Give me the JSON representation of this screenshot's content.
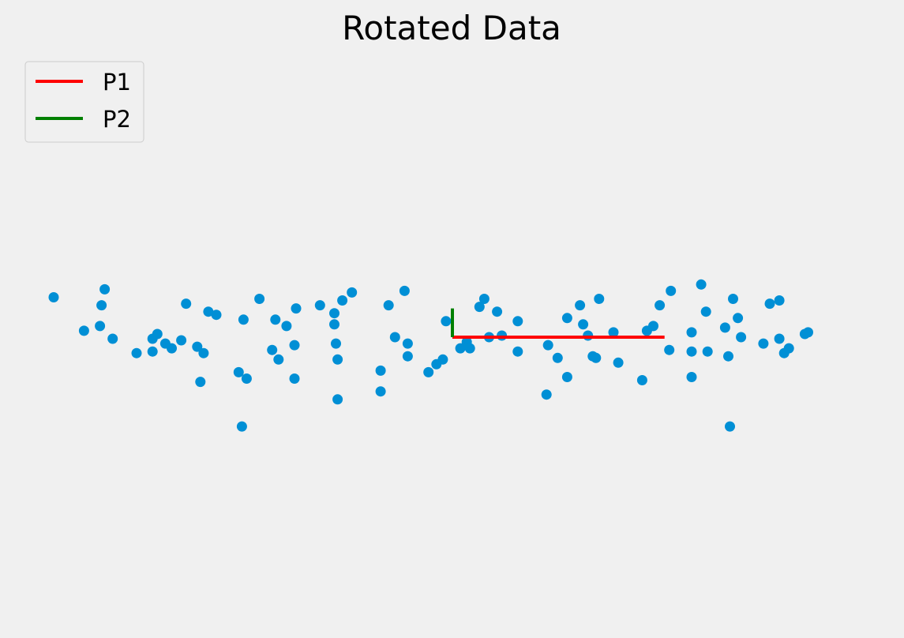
{
  "chart_data": {
    "type": "scatter",
    "title": "Rotated Data",
    "xlabel": "",
    "ylabel": "",
    "axes_visible": false,
    "grid": false,
    "aspect": "equal",
    "xlim": [
      -2.85,
      2.85
    ],
    "ylim": [
      -2.0,
      2.0
    ],
    "point_color": "#008fd5",
    "legend": {
      "placement": "top-left"
    },
    "lines": [
      {
        "name": "P1",
        "color": "#ff0000",
        "x": [
          0.0,
          1.33
        ],
        "y": [
          0.0,
          0.0
        ]
      },
      {
        "name": "P2",
        "color": "#008000",
        "x": [
          0.0,
          0.0
        ],
        "y": [
          0.0,
          0.18
        ]
      }
    ],
    "points": [
      [
        -2.5,
        0.25
      ],
      [
        -2.31,
        0.04
      ],
      [
        -2.21,
        0.07
      ],
      [
        -2.2,
        0.2
      ],
      [
        -2.18,
        0.3
      ],
      [
        -2.13,
        -0.01
      ],
      [
        -1.98,
        -0.1
      ],
      [
        -1.88,
        -0.09
      ],
      [
        -1.88,
        -0.01
      ],
      [
        -1.85,
        0.02
      ],
      [
        -1.8,
        -0.04
      ],
      [
        -1.76,
        -0.07
      ],
      [
        -1.7,
        -0.02
      ],
      [
        -1.67,
        0.21
      ],
      [
        -1.6,
        -0.06
      ],
      [
        -1.58,
        -0.28
      ],
      [
        -1.56,
        -0.1
      ],
      [
        -1.53,
        0.16
      ],
      [
        -1.48,
        0.14
      ],
      [
        -1.34,
        -0.22
      ],
      [
        -1.32,
        -0.56
      ],
      [
        -1.31,
        0.11
      ],
      [
        -1.29,
        -0.26
      ],
      [
        -1.21,
        0.24
      ],
      [
        -1.13,
        -0.08
      ],
      [
        -1.11,
        0.11
      ],
      [
        -1.09,
        -0.14
      ],
      [
        -1.04,
        0.07
      ],
      [
        -0.99,
        -0.26
      ],
      [
        -0.99,
        -0.05
      ],
      [
        -0.98,
        0.18
      ],
      [
        -0.83,
        0.2
      ],
      [
        -0.74,
        0.15
      ],
      [
        -0.74,
        0.08
      ],
      [
        -0.73,
        -0.04
      ],
      [
        -0.72,
        -0.14
      ],
      [
        -0.72,
        -0.39
      ],
      [
        -0.69,
        0.23
      ],
      [
        -0.63,
        0.28
      ],
      [
        -0.45,
        -0.21
      ],
      [
        -0.45,
        -0.34
      ],
      [
        -0.4,
        0.2
      ],
      [
        -0.36,
        0.0
      ],
      [
        -0.3,
        0.29
      ],
      [
        -0.28,
        -0.12
      ],
      [
        -0.28,
        -0.04
      ],
      [
        -0.15,
        -0.22
      ],
      [
        -0.1,
        -0.17
      ],
      [
        -0.06,
        -0.14
      ],
      [
        -0.04,
        0.1
      ],
      [
        0.05,
        -0.07
      ],
      [
        0.09,
        -0.03
      ],
      [
        0.11,
        -0.07
      ],
      [
        0.17,
        0.19
      ],
      [
        0.2,
        0.24
      ],
      [
        0.23,
        0.0
      ],
      [
        0.28,
        0.16
      ],
      [
        0.31,
        0.01
      ],
      [
        0.41,
        -0.09
      ],
      [
        0.41,
        0.1
      ],
      [
        0.59,
        -0.36
      ],
      [
        0.6,
        -0.05
      ],
      [
        0.66,
        -0.13
      ],
      [
        0.72,
        0.12
      ],
      [
        0.72,
        -0.25
      ],
      [
        0.8,
        0.2
      ],
      [
        0.82,
        0.08
      ],
      [
        0.85,
        0.01
      ],
      [
        0.88,
        -0.12
      ],
      [
        0.9,
        -0.13
      ],
      [
        0.92,
        0.24
      ],
      [
        1.01,
        0.03
      ],
      [
        1.04,
        -0.16
      ],
      [
        1.19,
        -0.27
      ],
      [
        1.22,
        0.04
      ],
      [
        1.26,
        0.07
      ],
      [
        1.3,
        0.2
      ],
      [
        1.36,
        -0.08
      ],
      [
        1.37,
        0.29
      ],
      [
        1.5,
        -0.25
      ],
      [
        1.5,
        0.03
      ],
      [
        1.5,
        -0.09
      ],
      [
        1.56,
        0.33
      ],
      [
        1.59,
        0.16
      ],
      [
        1.6,
        -0.09
      ],
      [
        1.71,
        0.06
      ],
      [
        1.73,
        -0.12
      ],
      [
        1.74,
        -0.56
      ],
      [
        1.76,
        0.24
      ],
      [
        1.79,
        0.12
      ],
      [
        1.81,
        0.0
      ],
      [
        1.95,
        -0.04
      ],
      [
        1.99,
        0.21
      ],
      [
        2.05,
        0.23
      ],
      [
        2.05,
        -0.01
      ],
      [
        2.08,
        -0.1
      ],
      [
        2.11,
        -0.07
      ],
      [
        2.21,
        0.02
      ],
      [
        2.23,
        0.03
      ]
    ]
  }
}
